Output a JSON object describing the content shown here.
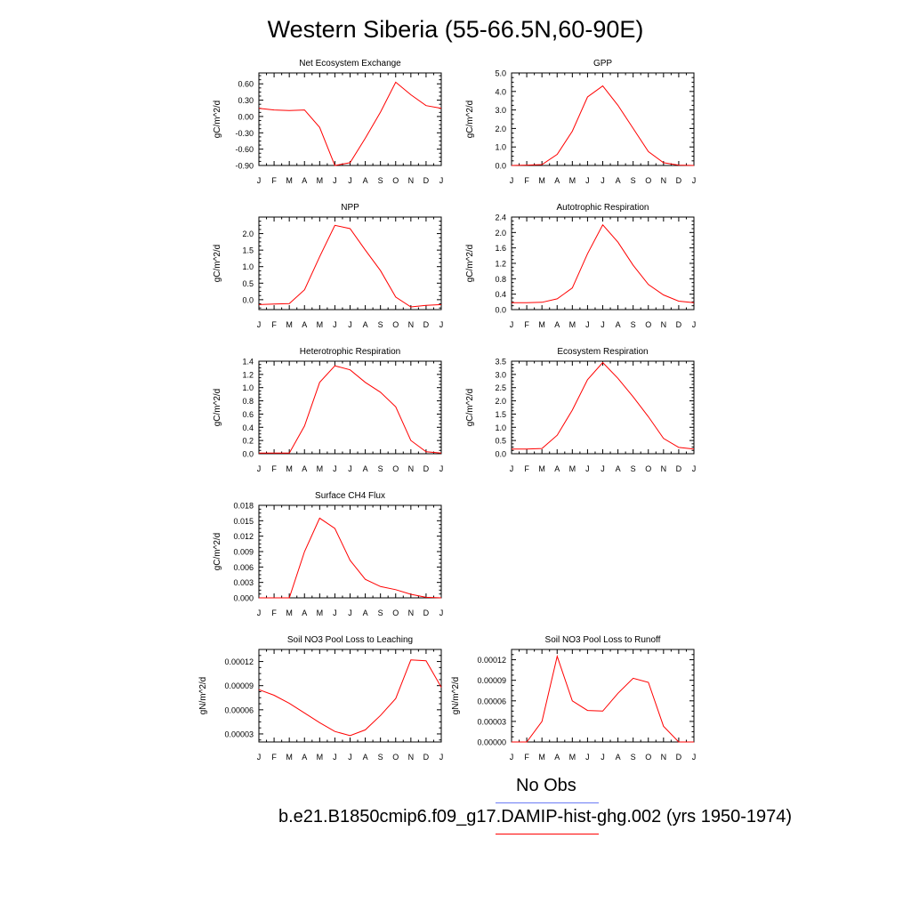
{
  "page": {
    "title": "Western Siberia (55-66.5N,60-90E)"
  },
  "legend": [
    {
      "label": "No Obs",
      "color": "#6b7cf5"
    },
    {
      "label": "b.e21.B1850cmip6.f09_g17.DAMIP-hist-ghg.002 (yrs 1950-1974)",
      "color": "#ff0000"
    }
  ],
  "chart_data": [
    {
      "type": "line",
      "title": "Net Ecosystem Exchange",
      "ylabel": "gC/m^2/d",
      "categories": [
        "J",
        "F",
        "M",
        "A",
        "M",
        "J",
        "J",
        "A",
        "S",
        "O",
        "N",
        "D",
        "J"
      ],
      "ylim": [
        -0.9,
        0.8
      ],
      "yticks": [
        "-0.90",
        "-0.60",
        "-0.30",
        "0.00",
        "0.30",
        "0.60"
      ],
      "yticks_values": [
        -0.9,
        -0.6,
        -0.3,
        0.0,
        0.3,
        0.6
      ],
      "series": [
        {
          "color": "#ff0000",
          "values": [
            0.15,
            0.12,
            0.11,
            0.12,
            -0.2,
            -0.9,
            -0.85,
            -0.4,
            0.08,
            0.63,
            0.4,
            0.2,
            0.15
          ]
        }
      ]
    },
    {
      "type": "line",
      "title": "GPP",
      "ylabel": "gC/m^2/d",
      "categories": [
        "J",
        "F",
        "M",
        "A",
        "M",
        "J",
        "J",
        "A",
        "S",
        "O",
        "N",
        "D",
        "J"
      ],
      "ylim": [
        0,
        5
      ],
      "yticks": [
        "0.0",
        "1.0",
        "2.0",
        "3.0",
        "4.0",
        "5.0"
      ],
      "yticks_values": [
        0,
        1,
        2,
        3,
        4,
        5
      ],
      "series": [
        {
          "color": "#ff0000",
          "values": [
            0.0,
            0.02,
            0.05,
            0.6,
            1.85,
            3.7,
            4.3,
            3.25,
            2.0,
            0.75,
            0.15,
            0.02,
            0.0
          ]
        }
      ]
    },
    {
      "type": "line",
      "title": "NPP",
      "ylabel": "gC/m^2/d",
      "categories": [
        "J",
        "F",
        "M",
        "A",
        "M",
        "J",
        "J",
        "A",
        "S",
        "O",
        "N",
        "D",
        "J"
      ],
      "ylim": [
        -0.3,
        2.5
      ],
      "yticks": [
        "0.0",
        "0.5",
        "1.0",
        "1.5",
        "2.0"
      ],
      "yticks_values": [
        0,
        0.5,
        1,
        1.5,
        2
      ],
      "series": [
        {
          "color": "#ff0000",
          "values": [
            -0.15,
            -0.13,
            -0.12,
            0.3,
            1.3,
            2.25,
            2.15,
            1.5,
            0.88,
            0.08,
            -0.22,
            -0.17,
            -0.15
          ]
        }
      ]
    },
    {
      "type": "line",
      "title": "Autotrophic Respiration",
      "ylabel": "gC/m^2/d",
      "categories": [
        "J",
        "F",
        "M",
        "A",
        "M",
        "J",
        "J",
        "A",
        "S",
        "O",
        "N",
        "D",
        "J"
      ],
      "ylim": [
        0,
        2.4
      ],
      "yticks": [
        "0.0",
        "0.4",
        "0.8",
        "1.2",
        "1.6",
        "2.0",
        "2.4"
      ],
      "yticks_values": [
        0,
        0.4,
        0.8,
        1.2,
        1.6,
        2.0,
        2.4
      ],
      "series": [
        {
          "color": "#ff0000",
          "values": [
            0.18,
            0.18,
            0.19,
            0.28,
            0.56,
            1.45,
            2.2,
            1.75,
            1.15,
            0.65,
            0.38,
            0.22,
            0.18
          ]
        }
      ]
    },
    {
      "type": "line",
      "title": "Heterotrophic Respiration",
      "ylabel": "gC/m^2/d",
      "categories": [
        "J",
        "F",
        "M",
        "A",
        "M",
        "J",
        "J",
        "A",
        "S",
        "O",
        "N",
        "D",
        "J"
      ],
      "ylim": [
        0,
        1.4
      ],
      "yticks": [
        "0.0",
        "0.2",
        "0.4",
        "0.6",
        "0.8",
        "1.0",
        "1.2",
        "1.4"
      ],
      "yticks_values": [
        0,
        0.2,
        0.4,
        0.6,
        0.8,
        1.0,
        1.2,
        1.4
      ],
      "series": [
        {
          "color": "#ff0000",
          "values": [
            0.01,
            0.01,
            0.01,
            0.42,
            1.08,
            1.33,
            1.27,
            1.08,
            0.93,
            0.71,
            0.2,
            0.03,
            0.01
          ]
        }
      ]
    },
    {
      "type": "line",
      "title": "Ecosystem Respiration",
      "ylabel": "gC/m^2/d",
      "categories": [
        "J",
        "F",
        "M",
        "A",
        "M",
        "J",
        "J",
        "A",
        "S",
        "O",
        "N",
        "D",
        "J"
      ],
      "ylim": [
        0,
        3.5
      ],
      "yticks": [
        "0.0",
        "0.5",
        "1.0",
        "1.5",
        "2.0",
        "2.5",
        "3.0",
        "3.5"
      ],
      "yticks_values": [
        0,
        0.5,
        1,
        1.5,
        2,
        2.5,
        3,
        3.5
      ],
      "series": [
        {
          "color": "#ff0000",
          "values": [
            0.18,
            0.18,
            0.2,
            0.7,
            1.65,
            2.8,
            3.45,
            2.85,
            2.15,
            1.4,
            0.58,
            0.24,
            0.18
          ]
        }
      ]
    },
    {
      "type": "line",
      "title": "Surface CH4 Flux",
      "ylabel": "gC/m^2/d",
      "categories": [
        "J",
        "F",
        "M",
        "A",
        "M",
        "J",
        "J",
        "A",
        "S",
        "O",
        "N",
        "D",
        "J"
      ],
      "ylim": [
        0,
        0.018
      ],
      "yticks": [
        "0.000",
        "0.003",
        "0.006",
        "0.009",
        "0.012",
        "0.015",
        "0.018"
      ],
      "yticks_values": [
        0,
        0.003,
        0.006,
        0.009,
        0.012,
        0.015,
        0.018
      ],
      "series": [
        {
          "color": "#ff0000",
          "values": [
            0.0,
            0.0,
            0.0,
            0.009,
            0.0155,
            0.0135,
            0.0073,
            0.0036,
            0.0022,
            0.0016,
            0.0007,
            0.0001,
            0.0
          ]
        }
      ]
    },
    {
      "type": "line",
      "title": "Soil NO3 Pool Loss to Leaching",
      "ylabel": "gN/m^2/d",
      "categories": [
        "J",
        "F",
        "M",
        "A",
        "M",
        "J",
        "J",
        "A",
        "S",
        "O",
        "N",
        "D",
        "J"
      ],
      "ylim": [
        2e-05,
        0.000135
      ],
      "yticks": [
        "0.00003",
        "0.00006",
        "0.00009",
        "0.00012"
      ],
      "yticks_values": [
        3e-05,
        6e-05,
        9e-05,
        0.00012
      ],
      "series": [
        {
          "color": "#ff0000",
          "values": [
            8.5e-05,
            7.8e-05,
            6.8e-05,
            5.6e-05,
            4.4e-05,
            3.3e-05,
            2.8e-05,
            3.5e-05,
            5.3e-05,
            7.4e-05,
            0.000122,
            0.000121,
            8.8e-05
          ]
        }
      ]
    },
    {
      "type": "line",
      "title": "Soil NO3 Pool Loss to Runoff",
      "ylabel": "gN/m^2/d",
      "categories": [
        "J",
        "F",
        "M",
        "A",
        "M",
        "J",
        "J",
        "A",
        "S",
        "O",
        "N",
        "D",
        "J"
      ],
      "ylim": [
        0,
        0.000135
      ],
      "yticks": [
        "0.00000",
        "0.00003",
        "0.00006",
        "0.00009",
        "0.00012"
      ],
      "yticks_values": [
        0,
        3e-05,
        6e-05,
        9e-05,
        0.00012
      ],
      "series": [
        {
          "color": "#ff0000",
          "values": [
            0.0,
            0.0,
            3e-05,
            0.000125,
            6e-05,
            4.6e-05,
            4.5e-05,
            7.1e-05,
            9.3e-05,
            8.7e-05,
            2.3e-05,
            0.0,
            0.0
          ]
        }
      ]
    }
  ]
}
